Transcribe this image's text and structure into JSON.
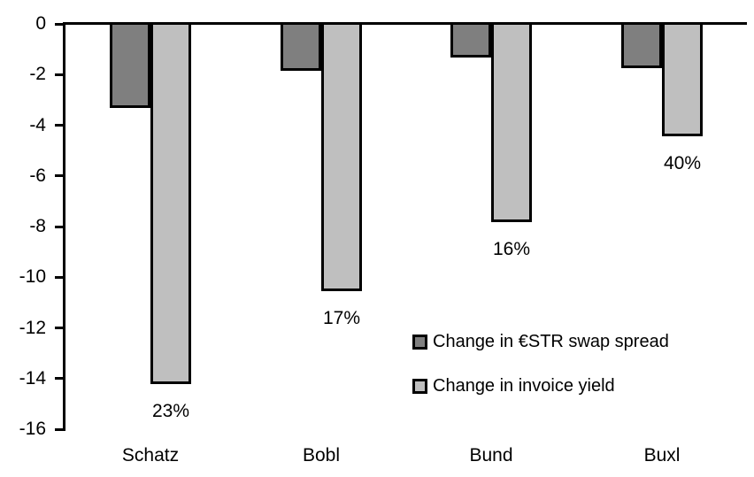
{
  "chart_data": {
    "type": "bar",
    "title": "",
    "xlabel": "",
    "ylabel": "",
    "categories": [
      "Schatz",
      "Bobl",
      "Bund",
      "Buxl"
    ],
    "series": [
      {
        "name": "Change in €STR swap spread",
        "color": "#7f7f7f",
        "values": [
          -3.3,
          -1.8,
          -1.3,
          -1.7
        ]
      },
      {
        "name": "Change in invoice yield",
        "color": "#bfbfbf",
        "values": [
          -14.2,
          -10.5,
          -7.8,
          -4.4
        ],
        "labels": [
          "23%",
          "17%",
          "16%",
          "40%"
        ]
      }
    ],
    "ylim": [
      -16,
      0
    ],
    "yticks": [
      0,
      -2,
      -4,
      -6,
      -8,
      -10,
      -12,
      -14,
      -16
    ],
    "grid": false,
    "legend_position": "inside-right",
    "bar_outline_color": "#000000",
    "axis_color": "#000000",
    "background_color": "#ffffff"
  }
}
